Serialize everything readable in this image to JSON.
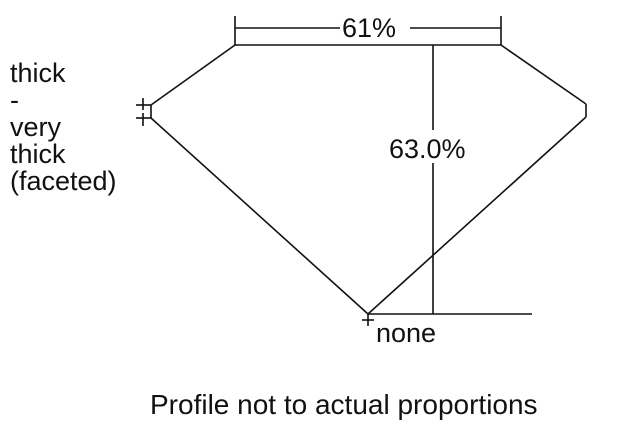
{
  "girdle_label": [
    "thick",
    "-",
    "very",
    "thick",
    "(faceted)"
  ],
  "table_label": "61%",
  "depth_label": "63.0%",
  "culet_label": "none",
  "footnote": "Profile not to actual proportions",
  "line_color": "#111111"
}
